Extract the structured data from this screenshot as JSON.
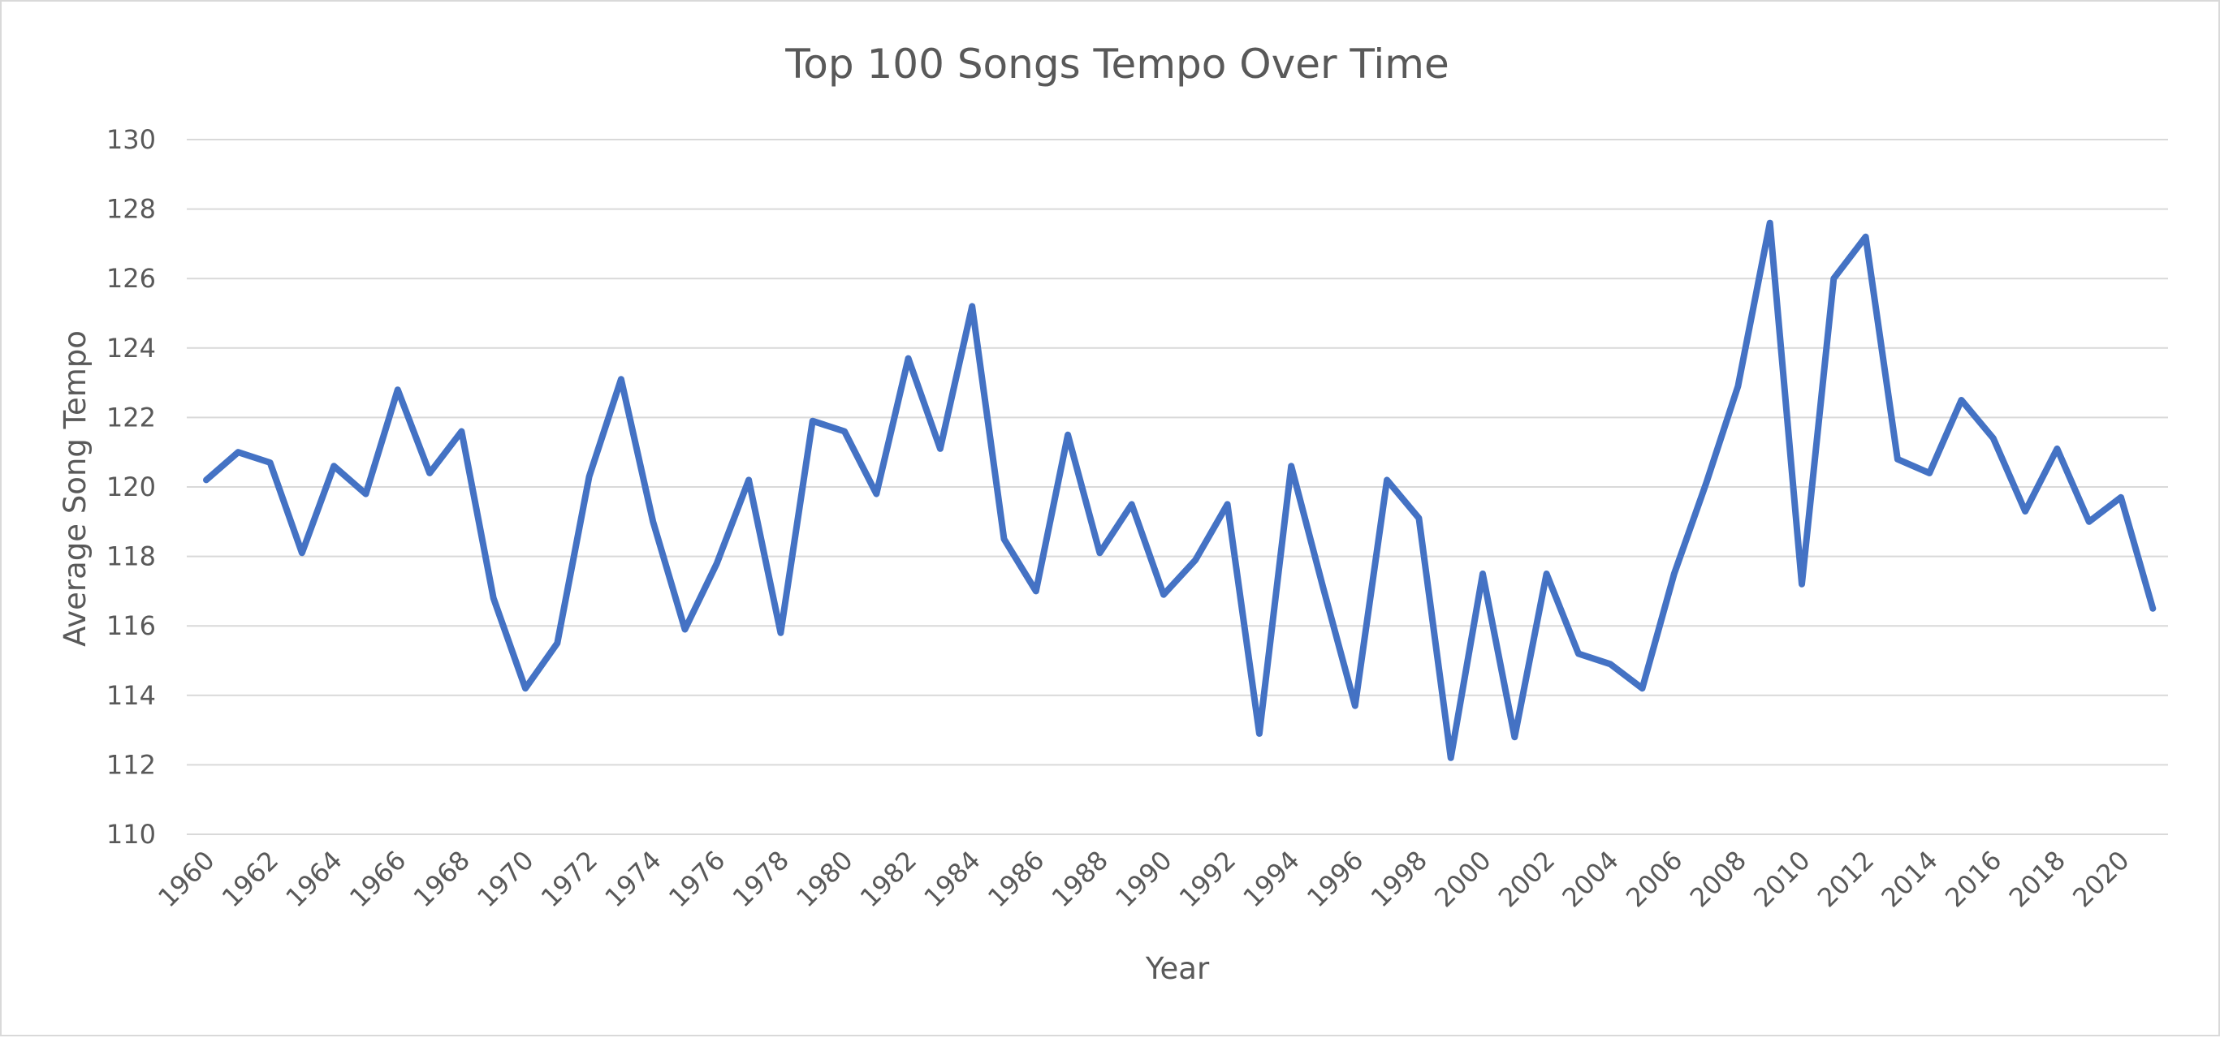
{
  "chart_data": {
    "type": "line",
    "title": "Top 100 Songs Tempo Over Time",
    "xlabel": "Year",
    "ylabel": "Average Song Tempo",
    "ylim": [
      110,
      130
    ],
    "y_ticks": [
      110,
      112,
      114,
      116,
      118,
      120,
      122,
      124,
      126,
      128,
      130
    ],
    "x_tick_labels": [
      "1960",
      "1962",
      "1964",
      "1966",
      "1968",
      "1970",
      "1972",
      "1974",
      "1976",
      "1978",
      "1980",
      "1982",
      "1984",
      "1986",
      "1988",
      "1990",
      "1992",
      "1994",
      "1996",
      "1998",
      "2000",
      "2002",
      "2004",
      "2006",
      "2008",
      "2010",
      "2012",
      "2014",
      "2016",
      "2018",
      "2020"
    ],
    "grid": true,
    "legend": "none",
    "x": [
      1960,
      1961,
      1962,
      1963,
      1964,
      1965,
      1966,
      1967,
      1968,
      1969,
      1970,
      1971,
      1972,
      1973,
      1974,
      1975,
      1976,
      1977,
      1978,
      1979,
      1980,
      1981,
      1982,
      1983,
      1984,
      1985,
      1986,
      1987,
      1988,
      1989,
      1990,
      1991,
      1992,
      1993,
      1994,
      1995,
      1996,
      1997,
      1998,
      1999,
      2000,
      2001,
      2002,
      2003,
      2004,
      2005,
      2006,
      2007,
      2008,
      2009,
      2010,
      2011,
      2012,
      2013,
      2014,
      2015,
      2016,
      2017,
      2018,
      2019,
      2020,
      2021
    ],
    "series": [
      {
        "color": "#4472c4",
        "values": [
          120.2,
          121.0,
          120.7,
          118.1,
          120.6,
          119.8,
          122.8,
          120.4,
          121.6,
          116.8,
          114.2,
          115.5,
          120.3,
          123.1,
          119.0,
          115.9,
          117.8,
          120.2,
          115.8,
          121.9,
          121.6,
          119.8,
          123.7,
          121.1,
          125.2,
          118.5,
          117.0,
          121.5,
          118.1,
          119.5,
          116.9,
          117.9,
          119.5,
          112.9,
          120.6,
          117.1,
          113.7,
          120.2,
          119.1,
          112.2,
          117.5,
          112.8,
          117.5,
          115.2,
          114.9,
          114.2,
          117.5,
          120.1,
          122.9,
          127.6,
          117.2,
          126.0,
          127.2,
          120.8,
          120.4,
          122.5,
          121.4,
          119.3,
          121.1,
          119.0,
          119.7,
          116.5
        ]
      }
    ]
  }
}
